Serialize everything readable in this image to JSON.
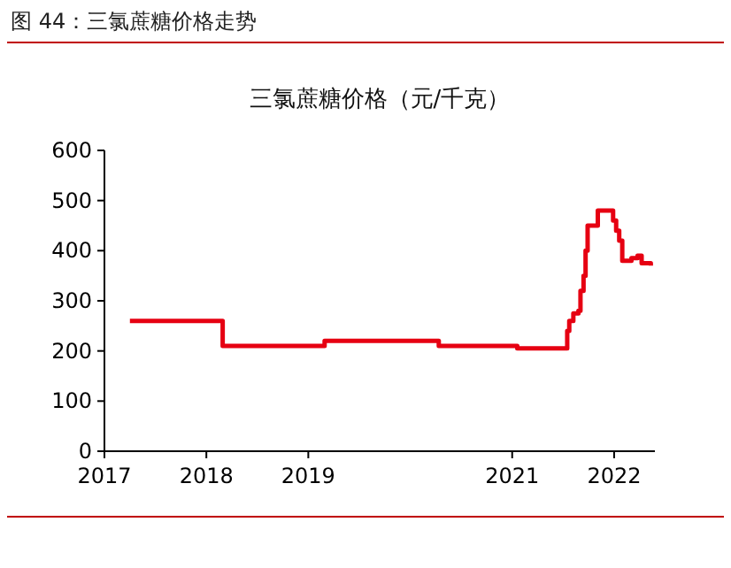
{
  "chart_data": {
    "type": "step",
    "title": "图 44：三氯蔗糖价格走势",
    "subtitle": "三氯蔗糖价格（元/千克）",
    "x": [
      2017.25,
      2018.16,
      2019.16,
      2020.28,
      2021.05,
      2021.54,
      2021.56,
      2021.6,
      2021.65,
      2021.67,
      2021.7,
      2021.72,
      2021.74,
      2021.84,
      2021.97,
      2021.99,
      2022.02,
      2022.05,
      2022.08,
      2022.17,
      2022.23,
      2022.27,
      2022.36
    ],
    "series": [
      {
        "color": "#e60012",
        "values": [
          260,
          210,
          220,
          210,
          205,
          240,
          260,
          275,
          280,
          320,
          350,
          400,
          450,
          480,
          480,
          460,
          440,
          420,
          380,
          385,
          390,
          375,
          370
        ]
      }
    ],
    "xlim": [
      2017,
      2022.4
    ],
    "xticks": [
      2017,
      2018,
      2019,
      2021,
      2022
    ],
    "ylim": [
      0,
      600
    ],
    "yticks": [
      0,
      100,
      200,
      300,
      400,
      500,
      600
    ],
    "grid": false,
    "marker": "none",
    "line_style": "solid"
  }
}
